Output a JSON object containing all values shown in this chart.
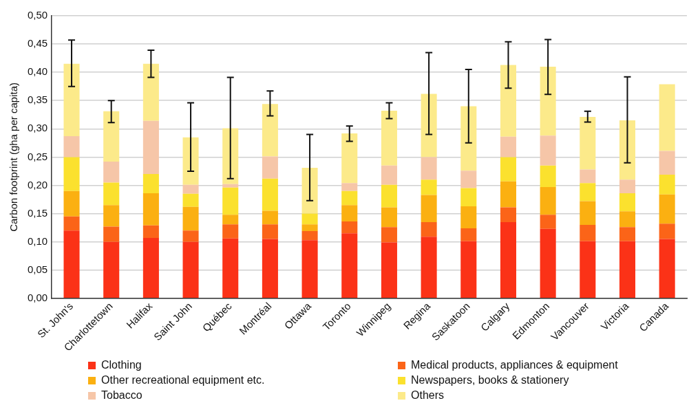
{
  "chart_data": {
    "type": "bar",
    "stacked": true,
    "ylabel": "Carbon footprint (gha per capita)",
    "categories": [
      "St. John's",
      "Charlottetown",
      "Halifax",
      "Saint John",
      "Québec",
      "Montréal",
      "Ottawa",
      "Toronto",
      "Winnipeg",
      "Regina",
      "Saskatoon",
      "Calgary",
      "Edmonton",
      "Vancouver",
      "Victoria",
      "Canada"
    ],
    "series": [
      {
        "name": "Clothing",
        "color": "#fb3217",
        "values": [
          0.12,
          0.1,
          0.107,
          0.1,
          0.106,
          0.105,
          0.103,
          0.115,
          0.099,
          0.109,
          0.101,
          0.135,
          0.123,
          0.101,
          0.101,
          0.105
        ]
      },
      {
        "name": "Medical products, appliances & equipment",
        "color": "#fb6418",
        "values": [
          0.025,
          0.027,
          0.022,
          0.02,
          0.025,
          0.026,
          0.016,
          0.021,
          0.027,
          0.026,
          0.023,
          0.026,
          0.025,
          0.029,
          0.025,
          0.027
        ]
      },
      {
        "name": "Other recreational equipment etc.",
        "color": "#fbb011",
        "values": [
          0.045,
          0.038,
          0.057,
          0.042,
          0.017,
          0.024,
          0.012,
          0.029,
          0.035,
          0.048,
          0.039,
          0.046,
          0.049,
          0.042,
          0.028,
          0.052
        ]
      },
      {
        "name": "Newspapers, books & stationery",
        "color": "#fbe12e",
        "values": [
          0.06,
          0.04,
          0.034,
          0.023,
          0.048,
          0.057,
          0.019,
          0.025,
          0.04,
          0.027,
          0.032,
          0.043,
          0.038,
          0.032,
          0.032,
          0.035
        ]
      },
      {
        "name": "Tobacco",
        "color": "#f6c6a8",
        "values": [
          0.037,
          0.037,
          0.094,
          0.016,
          0.006,
          0.039,
          0,
          0.014,
          0.034,
          0.04,
          0.031,
          0.036,
          0.053,
          0.024,
          0.024,
          0.042
        ]
      },
      {
        "name": "Others",
        "color": "#fcea8a",
        "values": [
          0.128,
          0.089,
          0.101,
          0.084,
          0.099,
          0.093,
          0.081,
          0.088,
          0.097,
          0.112,
          0.114,
          0.127,
          0.122,
          0.093,
          0.105,
          0.118
        ],
        "errors": [
          [
            0.375,
            0.457
          ],
          [
            0.311,
            0.35
          ],
          [
            0.391,
            0.439
          ],
          [
            0.225,
            0.346
          ],
          [
            0.212,
            0.391
          ],
          [
            0.323,
            0.367
          ],
          [
            0.173,
            0.29
          ],
          [
            0.278,
            0.305
          ],
          [
            0.318,
            0.346
          ],
          [
            0.29,
            0.435
          ],
          [
            0.275,
            0.405
          ],
          [
            0.372,
            0.454
          ],
          [
            0.361,
            0.458
          ],
          [
            0.312,
            0.331
          ],
          [
            0.24,
            0.392
          ],
          null
        ]
      }
    ],
    "ylim": [
      0,
      0.5
    ],
    "yticks": [
      {
        "value": 0,
        "label": "0,00"
      },
      {
        "value": 0.05,
        "label": "0,05"
      },
      {
        "value": 0.1,
        "label": "0,10"
      },
      {
        "value": 0.15,
        "label": "0,15"
      },
      {
        "value": 0.2,
        "label": "0,20"
      },
      {
        "value": 0.25,
        "label": "0,25"
      },
      {
        "value": 0.3,
        "label": "0,30"
      },
      {
        "value": 0.35,
        "label": "0,35"
      },
      {
        "value": 0.4,
        "label": "0,40"
      },
      {
        "value": 0.45,
        "label": "0,45"
      },
      {
        "value": 0.5,
        "label": "0,50"
      }
    ],
    "grid": "y",
    "legend": "bottom"
  }
}
